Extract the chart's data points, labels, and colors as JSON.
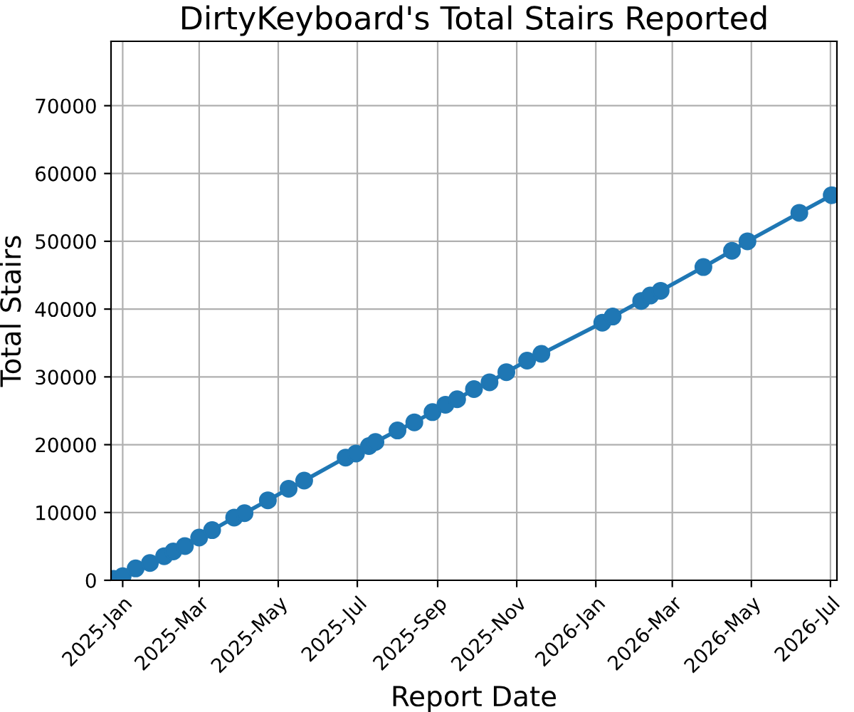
{
  "chart_data": {
    "type": "line",
    "title": "DirtyKeyboard's Total Stairs Reported",
    "xlabel": "Report Date",
    "ylabel": "Total Stairs",
    "x": [
      "2024-12-25",
      "2025-01-01",
      "2025-01-11",
      "2025-01-22",
      "2025-02-02",
      "2025-02-09",
      "2025-02-18",
      "2025-03-01",
      "2025-03-11",
      "2025-03-28",
      "2025-04-05",
      "2025-04-23",
      "2025-05-09",
      "2025-05-21",
      "2025-06-22",
      "2025-06-30",
      "2025-07-10",
      "2025-07-15",
      "2025-08-01",
      "2025-08-14",
      "2025-08-28",
      "2025-09-07",
      "2025-09-16",
      "2025-09-29",
      "2025-10-11",
      "2025-10-24",
      "2025-11-09",
      "2025-11-20",
      "2026-01-06",
      "2026-01-14",
      "2026-02-05",
      "2026-02-12",
      "2026-02-20",
      "2026-03-25",
      "2026-04-16",
      "2026-04-28",
      "2026-06-07",
      "2026-07-02"
    ],
    "series": [
      {
        "color": "#1f77b4",
        "values": [
          200,
          600,
          1750,
          2550,
          3550,
          4250,
          5050,
          6300,
          7400,
          9250,
          9900,
          11800,
          13500,
          14700,
          18100,
          18700,
          19800,
          20400,
          22100,
          23300,
          24800,
          25900,
          26700,
          28200,
          29200,
          30700,
          32400,
          33400,
          38000,
          38900,
          41200,
          42000,
          42700,
          46200,
          48600,
          50000,
          54200,
          56800
        ]
      }
    ],
    "xlim": [
      "2024-12-23",
      "2026-07-06"
    ],
    "ylim": [
      0,
      79500
    ],
    "xticks": [
      {
        "value": "2025-01-01",
        "label": "2025-Jan"
      },
      {
        "value": "2025-03-01",
        "label": "2025-Mar"
      },
      {
        "value": "2025-05-01",
        "label": "2025-May"
      },
      {
        "value": "2025-07-01",
        "label": "2025-Jul"
      },
      {
        "value": "2025-09-01",
        "label": "2025-Sep"
      },
      {
        "value": "2025-11-01",
        "label": "2025-Nov"
      },
      {
        "value": "2026-01-01",
        "label": "2026-Jan"
      },
      {
        "value": "2026-03-01",
        "label": "2026-Mar"
      },
      {
        "value": "2026-05-01",
        "label": "2026-May"
      },
      {
        "value": "2026-07-01",
        "label": "2026-Jul"
      }
    ],
    "yticks": [
      0,
      10000,
      20000,
      30000,
      40000,
      50000,
      60000,
      70000
    ],
    "grid": true,
    "marker": "circle",
    "line_style": "solid"
  }
}
